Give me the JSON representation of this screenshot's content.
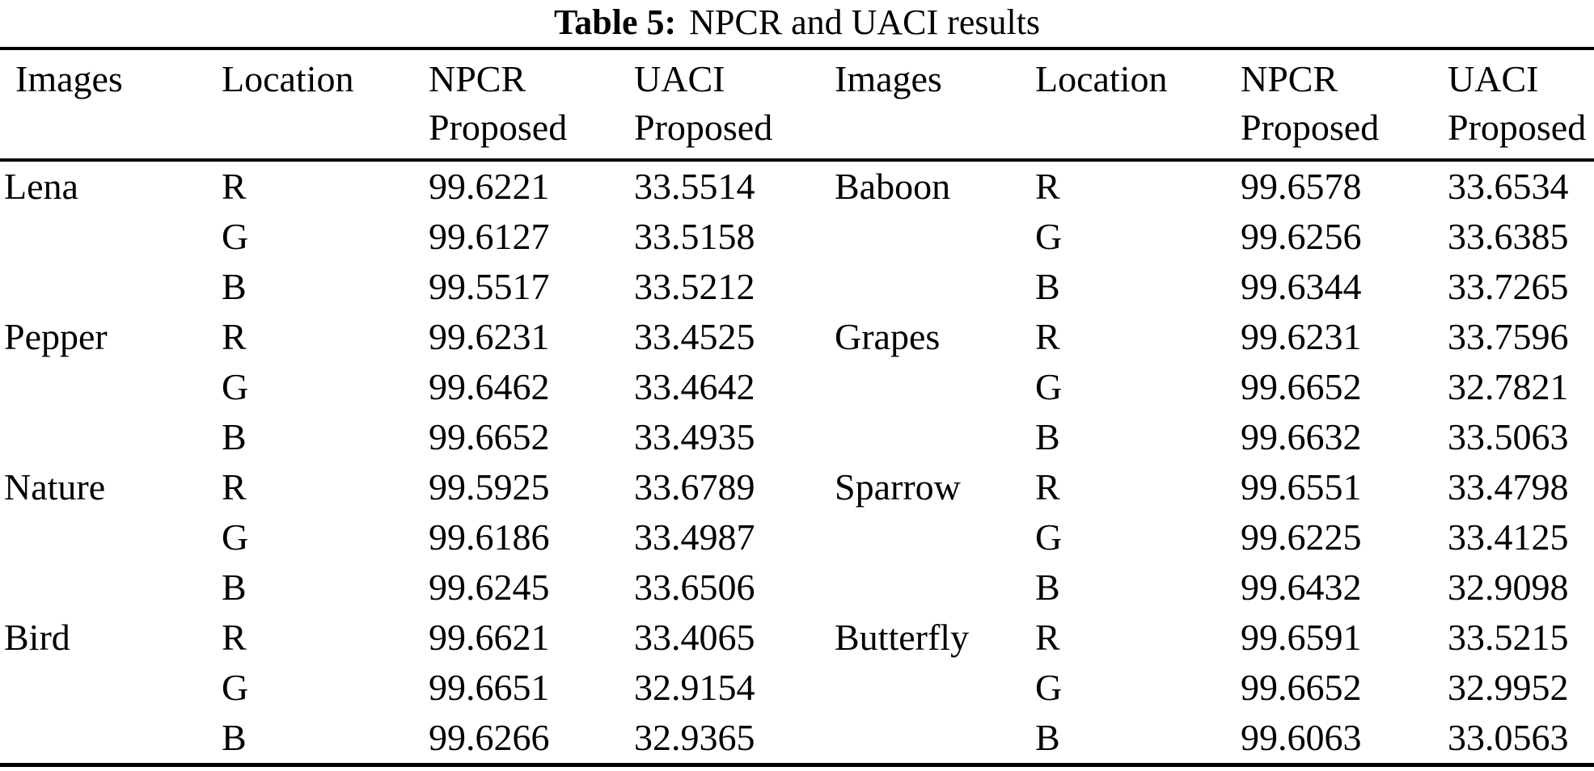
{
  "caption": {
    "label": "Table 5:",
    "title": "NPCR and UACI results"
  },
  "header": {
    "images": "Images",
    "location": "Location",
    "npcr": "NPCR",
    "uaci": "UACI",
    "proposed": "Proposed"
  },
  "rows": [
    {
      "l_image": "Lena",
      "l_loc": "R",
      "l_npcr": "99.6221",
      "l_uaci": "33.5514",
      "r_image": "Baboon",
      "r_loc": "R",
      "r_npcr": "99.6578",
      "r_uaci": "33.6534"
    },
    {
      "l_image": "",
      "l_loc": "G",
      "l_npcr": "99.6127",
      "l_uaci": "33.5158",
      "r_image": "",
      "r_loc": "G",
      "r_npcr": "99.6256",
      "r_uaci": "33.6385"
    },
    {
      "l_image": "",
      "l_loc": "B",
      "l_npcr": "99.5517",
      "l_uaci": "33.5212",
      "r_image": "",
      "r_loc": "B",
      "r_npcr": "99.6344",
      "r_uaci": "33.7265"
    },
    {
      "l_image": "Pepper",
      "l_loc": "R",
      "l_npcr": "99.6231",
      "l_uaci": "33.4525",
      "r_image": "Grapes",
      "r_loc": "R",
      "r_npcr": "99.6231",
      "r_uaci": "33.7596"
    },
    {
      "l_image": "",
      "l_loc": "G",
      "l_npcr": "99.6462",
      "l_uaci": "33.4642",
      "r_image": "",
      "r_loc": "G",
      "r_npcr": "99.6652",
      "r_uaci": "32.7821"
    },
    {
      "l_image": "",
      "l_loc": "B",
      "l_npcr": "99.6652",
      "l_uaci": "33.4935",
      "r_image": "",
      "r_loc": "B",
      "r_npcr": "99.6632",
      "r_uaci": "33.5063"
    },
    {
      "l_image": "Nature",
      "l_loc": "R",
      "l_npcr": "99.5925",
      "l_uaci": "33.6789",
      "r_image": "Sparrow",
      "r_loc": "R",
      "r_npcr": "99.6551",
      "r_uaci": "33.4798"
    },
    {
      "l_image": "",
      "l_loc": "G",
      "l_npcr": "99.6186",
      "l_uaci": "33.4987",
      "r_image": "",
      "r_loc": "G",
      "r_npcr": "99.6225",
      "r_uaci": "33.4125"
    },
    {
      "l_image": "",
      "l_loc": "B",
      "l_npcr": "99.6245",
      "l_uaci": "33.6506",
      "r_image": "",
      "r_loc": "B",
      "r_npcr": "99.6432",
      "r_uaci": "32.9098"
    },
    {
      "l_image": "Bird",
      "l_loc": "R",
      "l_npcr": "99.6621",
      "l_uaci": "33.4065",
      "r_image": "Butterfly",
      "r_loc": "R",
      "r_npcr": "99.6591",
      "r_uaci": "33.5215"
    },
    {
      "l_image": "",
      "l_loc": "G",
      "l_npcr": "99.6651",
      "l_uaci": "32.9154",
      "r_image": "",
      "r_loc": "G",
      "r_npcr": "99.6652",
      "r_uaci": "32.9952"
    },
    {
      "l_image": "",
      "l_loc": "B",
      "l_npcr": "99.6266",
      "l_uaci": "32.9365",
      "r_image": "",
      "r_loc": "B",
      "r_npcr": "99.6063",
      "r_uaci": "33.0563"
    }
  ]
}
